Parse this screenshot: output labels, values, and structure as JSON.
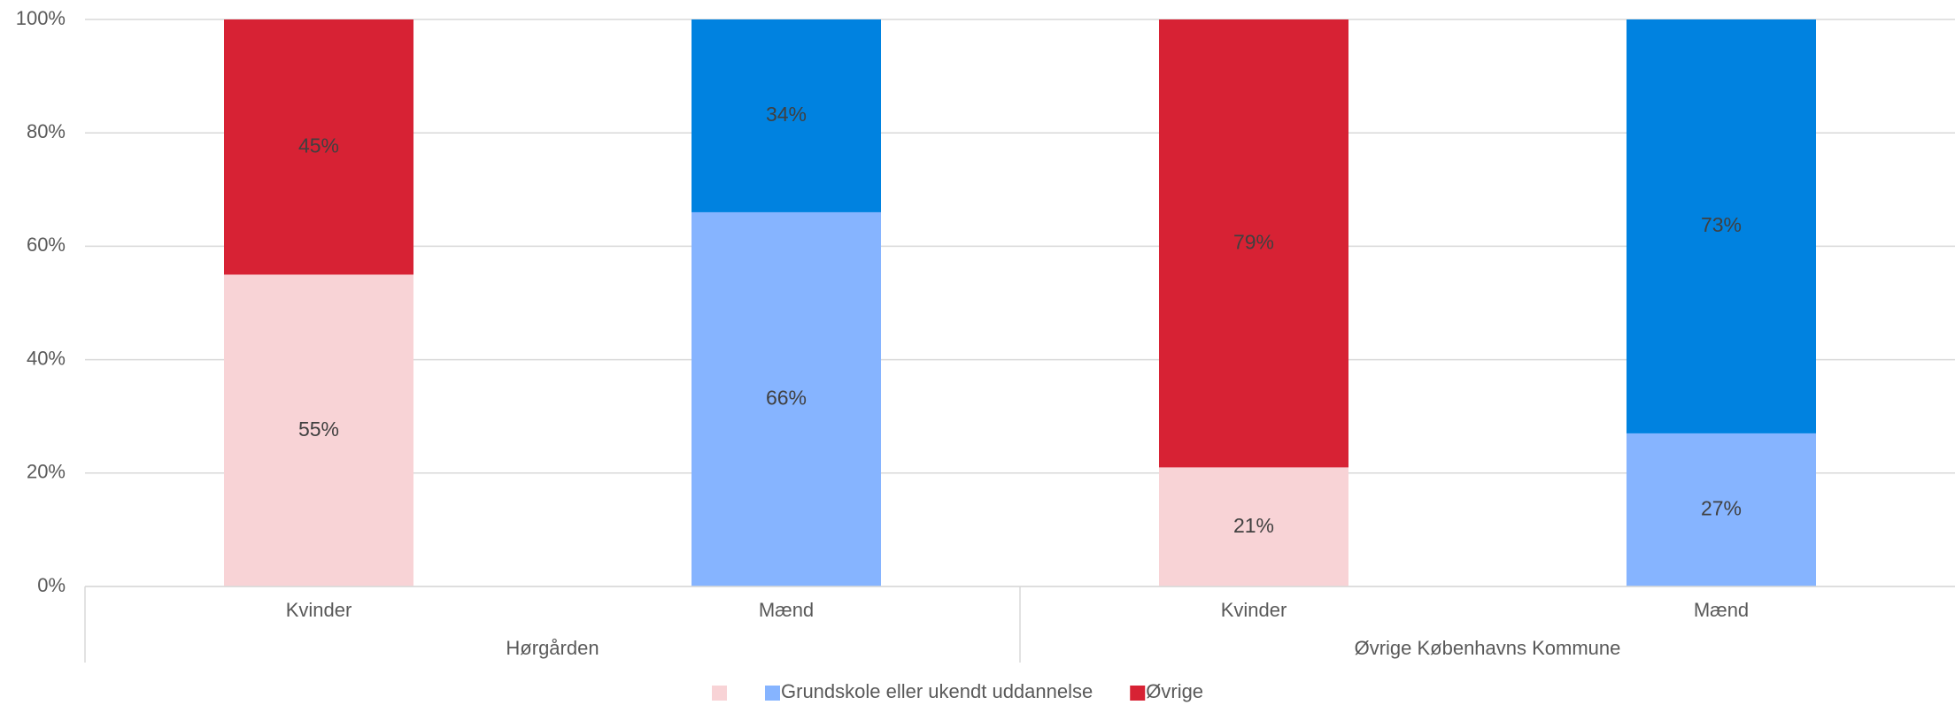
{
  "chart_data": {
    "type": "stacked_bar",
    "categories": [
      "Kvinder",
      "Mænd",
      "Kvinder",
      "Mænd"
    ],
    "groups": [
      "Hørgården",
      "Øvrige Københavns Kommune"
    ],
    "series": [
      {
        "name": "Grundskole eller ukendt uddannelse",
        "colors": [
          "#f8d3d6",
          "#86b4ff",
          "#f8d3d6",
          "#86b4ff"
        ],
        "color": "#86b4ff",
        "values": [
          55,
          66,
          21,
          27
        ],
        "value_labels": [
          "55%",
          "66%",
          "21%",
          "27%"
        ]
      },
      {
        "name": "Øvrige",
        "colors": [
          "#d72234",
          "#0082e0",
          "#d72234",
          "#0082e0"
        ],
        "color": "#d72234",
        "values": [
          45,
          34,
          79,
          73
        ],
        "value_labels": [
          "45%",
          "34%",
          "79%",
          "73%"
        ]
      }
    ],
    "legend_extra_color": "#f8d3d6",
    "ylim": [
      0,
      100
    ],
    "yticks": [
      {
        "value": 0,
        "label": "0%"
      },
      {
        "value": 20,
        "label": "20%"
      },
      {
        "value": 40,
        "label": "40%"
      },
      {
        "value": 60,
        "label": "60%"
      },
      {
        "value": 80,
        "label": "80%"
      },
      {
        "value": 100,
        "label": "100%"
      }
    ],
    "grid": true
  }
}
